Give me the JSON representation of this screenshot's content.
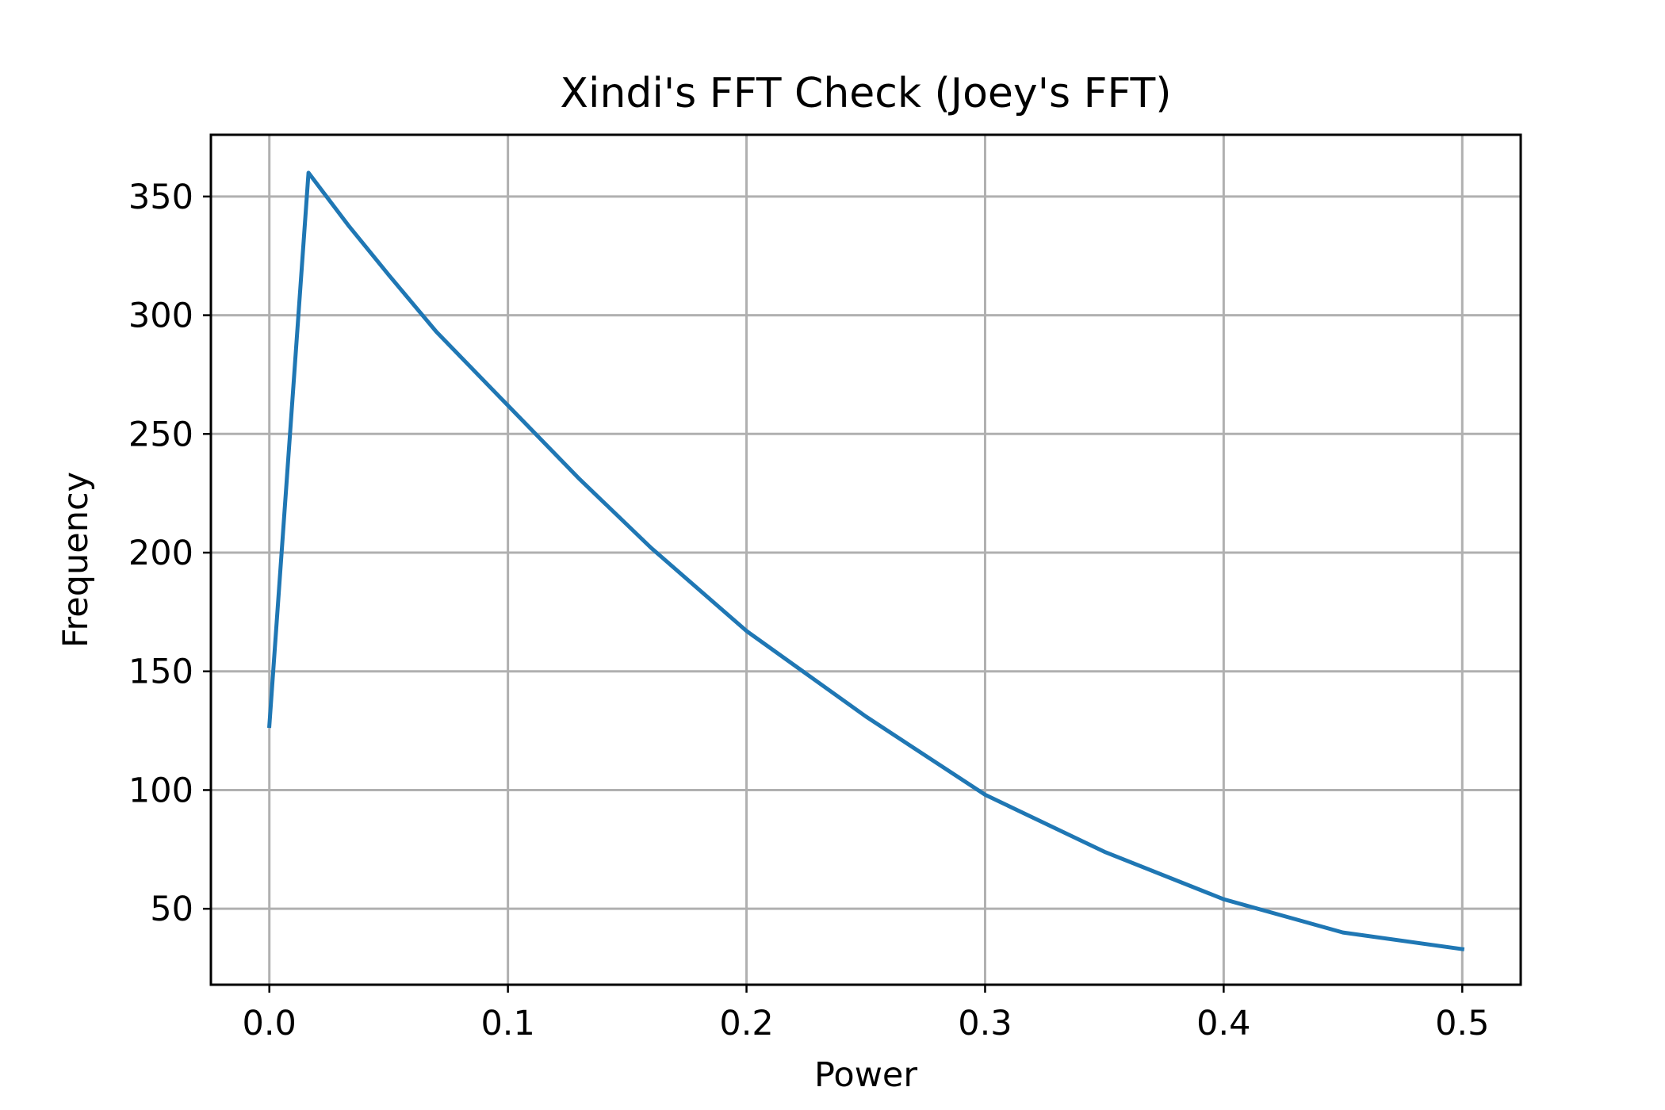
{
  "chart_data": {
    "type": "line",
    "title": "Xindi's FFT Check (Joey's FFT)",
    "xlabel": "Power",
    "ylabel": "Frequency",
    "xlim": [
      -0.0245,
      0.5245
    ],
    "ylim": [
      18,
      376
    ],
    "xticks": [
      0.0,
      0.1,
      0.2,
      0.3,
      0.4,
      0.5
    ],
    "xtick_labels": [
      "0.0",
      "0.1",
      "0.2",
      "0.3",
      "0.4",
      "0.5"
    ],
    "yticks": [
      50,
      100,
      150,
      200,
      250,
      300,
      350
    ],
    "ytick_labels": [
      "50",
      "100",
      "150",
      "200",
      "250",
      "300",
      "350"
    ],
    "grid": true,
    "colors": {
      "line": "#1f77b4"
    },
    "series": [
      {
        "x": [
          0.0,
          0.0164,
          0.033,
          0.05,
          0.07,
          0.1,
          0.13,
          0.16,
          0.2,
          0.25,
          0.3,
          0.35,
          0.4,
          0.45,
          0.5
        ],
        "values": [
          127,
          360,
          338,
          317,
          293,
          262,
          231,
          202,
          167,
          131,
          98,
          74,
          54,
          40,
          33
        ]
      }
    ]
  }
}
